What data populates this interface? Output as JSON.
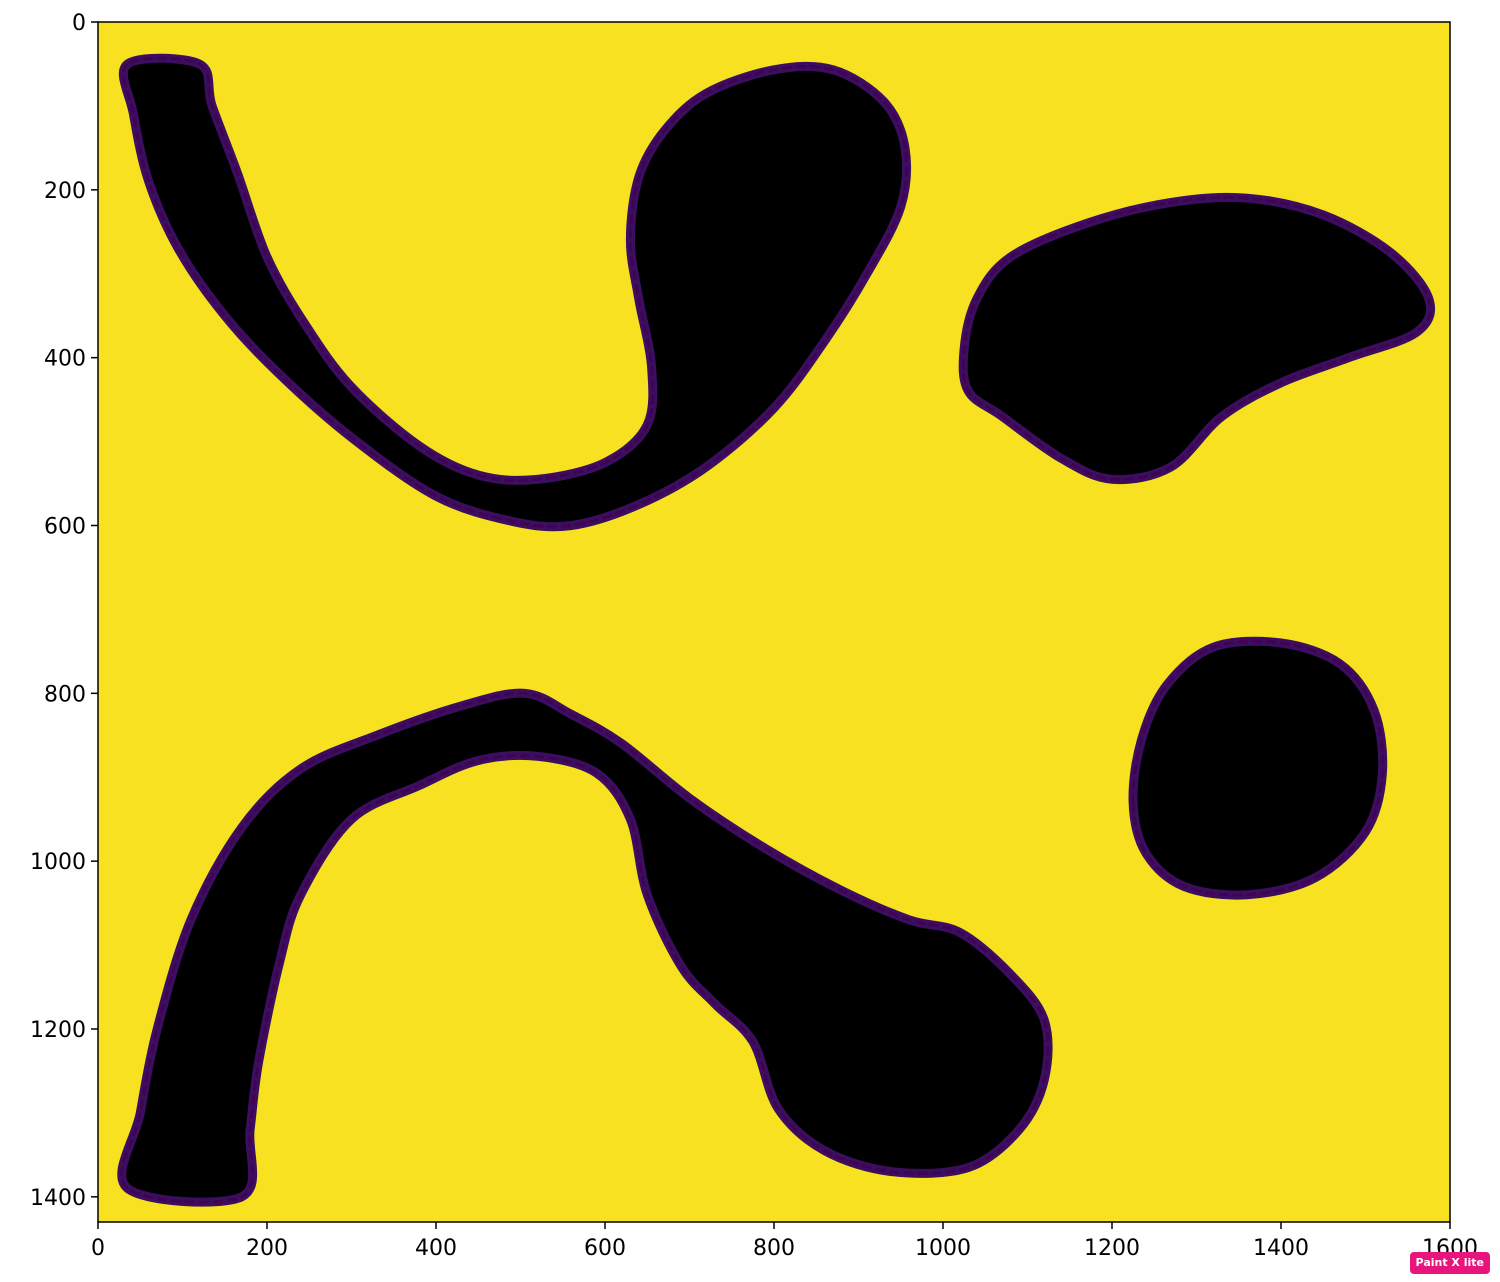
{
  "chart_data": {
    "type": "heatmap",
    "title": "",
    "xlabel": "",
    "ylabel": "",
    "xlim": [
      0,
      1600
    ],
    "ylim": [
      1430,
      0
    ],
    "xticks": [
      0,
      200,
      400,
      600,
      800,
      1000,
      1200,
      1400,
      1600
    ],
    "yticks": [
      0,
      200,
      400,
      600,
      800,
      1000,
      1200,
      1400
    ],
    "colormap": "viridis",
    "colors": {
      "background": "#f8e120",
      "region_fill": "#000000",
      "region_edge": "#3b0f5f",
      "edge_rim": "#440154"
    },
    "regions": [
      {
        "name": "top-left-curved-band",
        "outer_boundary": [
          [
            35,
            50
          ],
          [
            42,
            110
          ],
          [
            60,
            190
          ],
          [
            95,
            270
          ],
          [
            150,
            350
          ],
          [
            215,
            420
          ],
          [
            300,
            495
          ],
          [
            400,
            565
          ],
          [
            490,
            595
          ],
          [
            560,
            600
          ],
          [
            640,
            575
          ],
          [
            720,
            530
          ],
          [
            800,
            460
          ],
          [
            860,
            380
          ],
          [
            910,
            300
          ],
          [
            950,
            220
          ],
          [
            955,
            150
          ],
          [
            930,
            95
          ],
          [
            870,
            57
          ],
          [
            800,
            57
          ],
          [
            720,
            85
          ],
          [
            670,
            130
          ],
          [
            640,
            185
          ],
          [
            630,
            260
          ],
          [
            640,
            330
          ],
          [
            655,
            410
          ],
          [
            650,
            480
          ],
          [
            600,
            525
          ],
          [
            520,
            545
          ],
          [
            450,
            540
          ],
          [
            380,
            505
          ],
          [
            300,
            435
          ],
          [
            245,
            360
          ],
          [
            200,
            280
          ],
          [
            165,
            180
          ],
          [
            135,
            100
          ],
          [
            120,
            50
          ]
        ]
      },
      {
        "name": "top-right-blob",
        "outer_boundary": [
          [
            1070,
            470
          ],
          [
            1140,
            520
          ],
          [
            1200,
            545
          ],
          [
            1270,
            530
          ],
          [
            1330,
            470
          ],
          [
            1400,
            430
          ],
          [
            1480,
            400
          ],
          [
            1560,
            370
          ],
          [
            1575,
            330
          ],
          [
            1530,
            275
          ],
          [
            1450,
            230
          ],
          [
            1360,
            210
          ],
          [
            1270,
            215
          ],
          [
            1170,
            240
          ],
          [
            1080,
            280
          ],
          [
            1040,
            330
          ],
          [
            1025,
            390
          ],
          [
            1030,
            440
          ]
        ]
      },
      {
        "name": "bottom-right-circle",
        "outer_boundary": [
          [
            1225,
            930
          ],
          [
            1240,
            990
          ],
          [
            1285,
            1030
          ],
          [
            1360,
            1040
          ],
          [
            1440,
            1020
          ],
          [
            1500,
            965
          ],
          [
            1520,
            895
          ],
          [
            1510,
            820
          ],
          [
            1470,
            765
          ],
          [
            1400,
            740
          ],
          [
            1320,
            745
          ],
          [
            1265,
            790
          ],
          [
            1235,
            855
          ]
        ]
      },
      {
        "name": "bottom-curved-band",
        "outer_boundary": [
          [
            35,
            1390
          ],
          [
            50,
            1300
          ],
          [
            70,
            1200
          ],
          [
            110,
            1070
          ],
          [
            170,
            960
          ],
          [
            240,
            890
          ],
          [
            330,
            850
          ],
          [
            430,
            815
          ],
          [
            505,
            800
          ],
          [
            560,
            825
          ],
          [
            620,
            860
          ],
          [
            700,
            925
          ],
          [
            790,
            985
          ],
          [
            880,
            1035
          ],
          [
            960,
            1070
          ],
          [
            1020,
            1085
          ],
          [
            1080,
            1135
          ],
          [
            1120,
            1190
          ],
          [
            1120,
            1260
          ],
          [
            1090,
            1320
          ],
          [
            1030,
            1365
          ],
          [
            940,
            1370
          ],
          [
            860,
            1345
          ],
          [
            805,
            1295
          ],
          [
            775,
            1215
          ],
          [
            730,
            1170
          ],
          [
            690,
            1125
          ],
          [
            650,
            1040
          ],
          [
            630,
            950
          ],
          [
            590,
            895
          ],
          [
            520,
            875
          ],
          [
            450,
            880
          ],
          [
            380,
            910
          ],
          [
            300,
            950
          ],
          [
            240,
            1040
          ],
          [
            215,
            1120
          ],
          [
            190,
            1240
          ],
          [
            180,
            1320
          ],
          [
            170,
            1400
          ]
        ]
      }
    ]
  },
  "watermark": {
    "text": "Paint X lite",
    "color": "#e8157d"
  }
}
